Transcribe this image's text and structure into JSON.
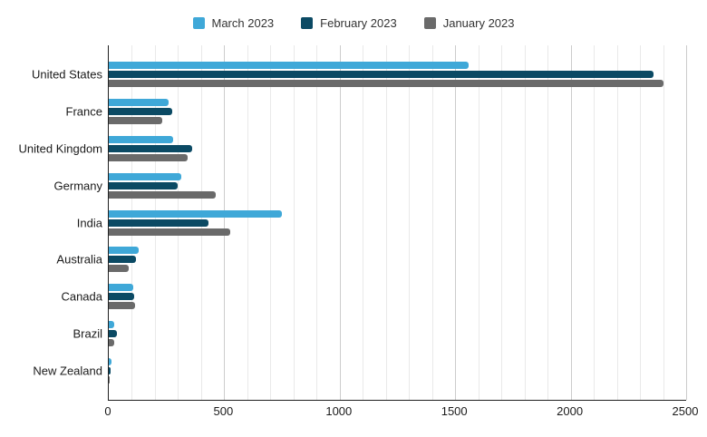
{
  "legend": [
    {
      "label": "March 2023",
      "color": "#3FA8D8"
    },
    {
      "label": "February 2023",
      "color": "#0B4A64"
    },
    {
      "label": "January 2023",
      "color": "#6A6A6A"
    }
  ],
  "chart_data": {
    "type": "bar",
    "orientation": "horizontal",
    "title": "",
    "xlabel": "",
    "ylabel": "",
    "categories": [
      "United States",
      "France",
      "United Kingdom",
      "Germany",
      "India",
      "Australia",
      "Canada",
      "Brazil",
      "New Zealand"
    ],
    "series": [
      {
        "name": "March 2023",
        "color": "#3FA8D8",
        "values": [
          1560,
          260,
          280,
          315,
          750,
          130,
          105,
          25,
          10
        ]
      },
      {
        "name": "February 2023",
        "color": "#0B4A64",
        "values": [
          2360,
          275,
          360,
          300,
          430,
          118,
          110,
          35,
          7
        ]
      },
      {
        "name": "January 2023",
        "color": "#6A6A6A",
        "values": [
          2400,
          230,
          340,
          465,
          525,
          85,
          115,
          22,
          4
        ]
      }
    ],
    "xlim": [
      0,
      2500
    ],
    "x_ticks": [
      "0",
      "500",
      "1000",
      "1500",
      "2000",
      "2500"
    ],
    "x_tick_values": [
      0,
      500,
      1000,
      1500,
      2000,
      2500
    ],
    "minor_grid_step": 100,
    "major_grid_step": 500,
    "grid": true,
    "legend_position": "top"
  },
  "colors": {
    "background": "#ffffff",
    "axis_line": "#212121",
    "major_grid": "#cccccc",
    "minor_grid": "#e9e9e9",
    "label_text": "#1a1a1a",
    "legend_text": "#333333"
  }
}
